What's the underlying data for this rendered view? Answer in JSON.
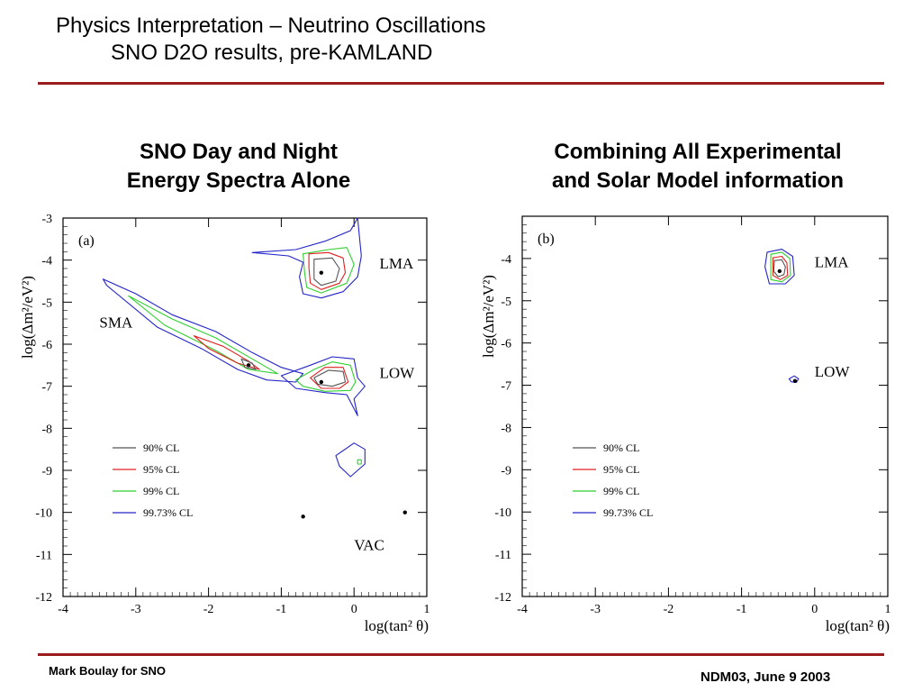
{
  "slide": {
    "title_line1": "Physics Interpretation – Neutrino Oscillations",
    "title_line2": "SNO D2O results, pre-KAMLAND",
    "footer_left": "Mark Boulay for SNO",
    "footer_right": "NDM03, June 9 2003",
    "rule_color": "#9b1c1c"
  },
  "panels": [
    {
      "heading_line1": "SNO Day and Night",
      "heading_line2": "Energy Spectra Alone"
    },
    {
      "heading_line1": "Combining All Experimental",
      "heading_line2": "and Solar Model information"
    }
  ],
  "chart_data": [
    {
      "type": "contour",
      "panel_label": "(a)",
      "xlabel": "log(tan² θ)",
      "ylabel": "log(Δm²/eV²)",
      "xlim": [
        -4,
        1
      ],
      "ylim": [
        -12,
        -3
      ],
      "xticks": [
        "-4",
        "-3",
        "-2",
        "-1",
        "0",
        "1"
      ],
      "yticks": [
        "-3",
        "-4",
        "-5",
        "-6",
        "-7",
        "-8",
        "-9",
        "-10",
        "-11",
        "-12"
      ],
      "legend": {
        "placement": "lower-left",
        "entries": [
          {
            "label": "90% CL",
            "color": "#555555"
          },
          {
            "label": "95% CL",
            "color": "#e02020"
          },
          {
            "label": "99% CL",
            "color": "#2fcf2f"
          },
          {
            "label": "99.73% CL",
            "color": "#2424c8"
          }
        ]
      },
      "annotations": [
        {
          "text": "LMA",
          "x": 0.35,
          "y": -4.2
        },
        {
          "text": "SMA",
          "x": -3.5,
          "y": -5.6
        },
        {
          "text": "LOW",
          "x": 0.35,
          "y": -6.8
        },
        {
          "text": "VAC",
          "x": 0.0,
          "y": -10.9
        }
      ],
      "best_fit_points": [
        {
          "x": -0.45,
          "y": -4.3
        },
        {
          "x": -0.45,
          "y": -6.9
        },
        {
          "x": -1.45,
          "y": -6.5
        },
        {
          "x": -0.7,
          "y": -10.1
        },
        {
          "x": 0.7,
          "y": -10.0
        }
      ],
      "regions": [
        {
          "name": "LMA",
          "contours": {
            "99.73": [
              [
                -1.4,
                -3.82
              ],
              [
                -0.8,
                -3.75
              ],
              [
                -0.4,
                -3.55
              ],
              [
                -0.05,
                -3.3
              ],
              [
                0.05,
                -3.0
              ],
              [
                0.1,
                -3.9
              ],
              [
                0.05,
                -4.4
              ],
              [
                -0.15,
                -4.75
              ],
              [
                -0.45,
                -4.9
              ],
              [
                -0.7,
                -4.8
              ],
              [
                -0.75,
                -4.4
              ],
              [
                -0.7,
                -4.05
              ],
              [
                -0.9,
                -3.9
              ]
            ],
            "99": [
              [
                -0.7,
                -3.85
              ],
              [
                -0.35,
                -3.75
              ],
              [
                -0.1,
                -3.7
              ],
              [
                0.0,
                -4.1
              ],
              [
                -0.1,
                -4.55
              ],
              [
                -0.45,
                -4.78
              ],
              [
                -0.65,
                -4.65
              ],
              [
                -0.68,
                -4.3
              ]
            ],
            "95": [
              [
                -0.62,
                -3.85
              ],
              [
                -0.35,
                -3.82
              ],
              [
                -0.15,
                -3.95
              ],
              [
                -0.12,
                -4.3
              ],
              [
                -0.2,
                -4.55
              ],
              [
                -0.45,
                -4.7
              ],
              [
                -0.6,
                -4.55
              ],
              [
                -0.62,
                -4.2
              ]
            ],
            "90": [
              [
                -0.55,
                -3.98
              ],
              [
                -0.3,
                -3.95
              ],
              [
                -0.2,
                -4.2
              ],
              [
                -0.25,
                -4.5
              ],
              [
                -0.45,
                -4.6
              ],
              [
                -0.55,
                -4.45
              ]
            ]
          }
        },
        {
          "name": "SMA",
          "contours": {
            "99.73": [
              [
                -3.45,
                -4.45
              ],
              [
                -3.0,
                -4.8
              ],
              [
                -2.5,
                -5.3
              ],
              [
                -1.9,
                -5.7
              ],
              [
                -1.4,
                -6.2
              ],
              [
                -1.0,
                -6.55
              ],
              [
                -0.7,
                -6.7
              ],
              [
                -0.8,
                -6.9
              ],
              [
                -1.2,
                -6.85
              ],
              [
                -1.6,
                -6.6
              ],
              [
                -2.1,
                -6.1
              ],
              [
                -2.7,
                -5.6
              ],
              [
                -3.4,
                -4.6
              ]
            ],
            "99": [
              [
                -3.1,
                -4.85
              ],
              [
                -2.5,
                -5.4
              ],
              [
                -1.9,
                -5.85
              ],
              [
                -1.4,
                -6.35
              ],
              [
                -1.05,
                -6.7
              ],
              [
                -1.45,
                -6.6
              ],
              [
                -1.9,
                -6.15
              ],
              [
                -2.6,
                -5.55
              ]
            ],
            "95": [
              [
                -2.2,
                -5.8
              ],
              [
                -1.8,
                -6.05
              ],
              [
                -1.45,
                -6.4
              ],
              [
                -1.3,
                -6.6
              ],
              [
                -1.6,
                -6.45
              ],
              [
                -2.0,
                -6.1
              ]
            ],
            "90": [
              [
                -1.55,
                -6.35
              ],
              [
                -1.4,
                -6.45
              ],
              [
                -1.35,
                -6.6
              ],
              [
                -1.5,
                -6.55
              ]
            ]
          }
        },
        {
          "name": "LOW",
          "contours": {
            "99.73": [
              [
                -1.0,
                -6.75
              ],
              [
                -0.6,
                -6.5
              ],
              [
                -0.3,
                -6.3
              ],
              [
                0.0,
                -6.35
              ],
              [
                0.05,
                -6.8
              ],
              [
                0.15,
                -7.0
              ],
              [
                0.0,
                -7.3
              ],
              [
                0.05,
                -7.7
              ],
              [
                -0.1,
                -7.2
              ],
              [
                -0.4,
                -7.15
              ],
              [
                -0.8,
                -7.05
              ]
            ],
            "99": [
              [
                -0.8,
                -6.85
              ],
              [
                -0.55,
                -6.6
              ],
              [
                -0.3,
                -6.42
              ],
              [
                -0.05,
                -6.5
              ],
              [
                0.02,
                -6.9
              ],
              [
                -0.05,
                -7.1
              ],
              [
                -0.4,
                -7.12
              ],
              [
                -0.7,
                -7.0
              ]
            ],
            "95": [
              [
                -0.6,
                -6.8
              ],
              [
                -0.4,
                -6.55
              ],
              [
                -0.15,
                -6.55
              ],
              [
                -0.08,
                -6.9
              ],
              [
                -0.2,
                -7.05
              ],
              [
                -0.45,
                -7.05
              ]
            ],
            "90": [
              [
                -0.55,
                -6.8
              ],
              [
                -0.35,
                -6.62
              ],
              [
                -0.15,
                -6.65
              ],
              [
                -0.12,
                -6.9
              ],
              [
                -0.3,
                -7.0
              ],
              [
                -0.5,
                -6.95
              ]
            ]
          }
        },
        {
          "name": "VAC",
          "contours": {
            "99.73": [
              [
                -0.25,
                -8.65
              ],
              [
                0.0,
                -8.35
              ],
              [
                0.15,
                -8.5
              ],
              [
                0.15,
                -8.85
              ],
              [
                -0.05,
                -9.15
              ],
              [
                -0.2,
                -8.9
              ]
            ],
            "99": [
              [
                0.05,
                -8.75
              ],
              [
                0.1,
                -8.75
              ],
              [
                0.1,
                -8.85
              ],
              [
                0.05,
                -8.85
              ]
            ]
          }
        }
      ]
    },
    {
      "type": "contour",
      "panel_label": "(b)",
      "xlabel": "log(tan² θ)",
      "ylabel": "log(Δm²/eV²)",
      "xlim": [
        -4,
        1
      ],
      "ylim": [
        -12,
        -3
      ],
      "xticks": [
        "-4",
        "-3",
        "-2",
        "-1",
        "0",
        "1"
      ],
      "yticks": [
        "-4",
        "-5",
        "-6",
        "-7",
        "-8",
        "-9",
        "-10",
        "-11",
        "-12"
      ],
      "legend": {
        "placement": "lower-left",
        "entries": [
          {
            "label": "90% CL",
            "color": "#555555"
          },
          {
            "label": "95% CL",
            "color": "#e02020"
          },
          {
            "label": "99% CL",
            "color": "#2fcf2f"
          },
          {
            "label": "99.73% CL",
            "color": "#2424c8"
          }
        ]
      },
      "annotations": [
        {
          "text": "LMA",
          "x": 0.0,
          "y": -4.2
        },
        {
          "text": "LOW",
          "x": 0.0,
          "y": -6.8
        }
      ],
      "best_fit_points": [
        {
          "x": -0.48,
          "y": -4.3
        },
        {
          "x": -0.27,
          "y": -6.9
        }
      ],
      "regions": [
        {
          "name": "LMA",
          "contours": {
            "99.73": [
              [
                -0.65,
                -3.85
              ],
              [
                -0.45,
                -3.78
              ],
              [
                -0.3,
                -3.95
              ],
              [
                -0.28,
                -4.4
              ],
              [
                -0.4,
                -4.6
              ],
              [
                -0.62,
                -4.6
              ],
              [
                -0.68,
                -4.2
              ]
            ],
            "99": [
              [
                -0.6,
                -3.9
              ],
              [
                -0.45,
                -3.85
              ],
              [
                -0.34,
                -4.0
              ],
              [
                -0.33,
                -4.4
              ],
              [
                -0.45,
                -4.55
              ],
              [
                -0.6,
                -4.5
              ]
            ],
            "95": [
              [
                -0.57,
                -3.98
              ],
              [
                -0.45,
                -3.95
              ],
              [
                -0.38,
                -4.1
              ],
              [
                -0.37,
                -4.4
              ],
              [
                -0.47,
                -4.5
              ],
              [
                -0.57,
                -4.4
              ]
            ],
            "90": [
              [
                -0.55,
                -4.05
              ],
              [
                -0.45,
                -4.03
              ],
              [
                -0.4,
                -4.2
              ],
              [
                -0.42,
                -4.38
              ],
              [
                -0.5,
                -4.43
              ],
              [
                -0.56,
                -4.3
              ]
            ]
          }
        },
        {
          "name": "LOW",
          "contours": {
            "99.73": [
              [
                -0.35,
                -6.85
              ],
              [
                -0.28,
                -6.78
              ],
              [
                -0.22,
                -6.85
              ],
              [
                -0.25,
                -6.93
              ],
              [
                -0.32,
                -6.92
              ]
            ]
          }
        }
      ]
    }
  ]
}
